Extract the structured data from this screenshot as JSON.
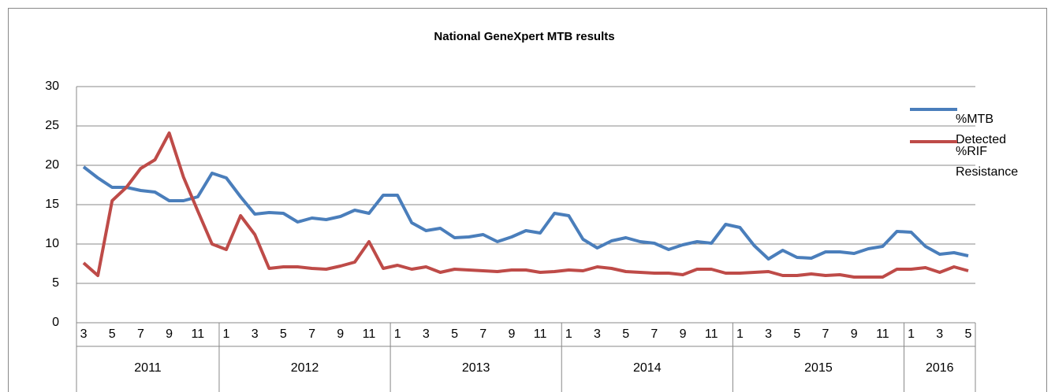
{
  "chart_data": {
    "type": "line",
    "title": "National GeneXpert MTB results",
    "groups": [
      {
        "label": "2011",
        "categories": [
          "3",
          null,
          "5",
          null,
          "7",
          null,
          "9",
          null,
          "11",
          null
        ]
      },
      {
        "label": "2012",
        "categories": [
          "1",
          null,
          "3",
          null,
          "5",
          null,
          "7",
          null,
          "9",
          null,
          "11",
          null
        ]
      },
      {
        "label": "2013",
        "categories": [
          "1",
          null,
          "3",
          null,
          "5",
          null,
          "7",
          null,
          "9",
          null,
          "11",
          null
        ]
      },
      {
        "label": "2014",
        "categories": [
          "1",
          null,
          "3",
          null,
          "5",
          null,
          "7",
          null,
          "9",
          null,
          "11",
          null
        ]
      },
      {
        "label": "2015",
        "categories": [
          "1",
          null,
          "3",
          null,
          "5",
          null,
          "7",
          null,
          "9",
          null,
          "11",
          null
        ]
      },
      {
        "label": "2016",
        "categories": [
          "1",
          null,
          "3",
          null,
          "5"
        ]
      }
    ],
    "series": [
      {
        "name": "%MTB Detected",
        "color": "#4a7ebb",
        "values": [
          19.8,
          18.4,
          17.2,
          17.2,
          16.8,
          16.6,
          15.5,
          15.5,
          16.0,
          19.0,
          18.4,
          16.0,
          13.8,
          14.0,
          13.9,
          12.8,
          13.3,
          13.1,
          13.5,
          14.3,
          13.9,
          16.2,
          16.2,
          12.7,
          11.7,
          12.0,
          10.8,
          10.9,
          11.2,
          10.3,
          10.9,
          11.7,
          11.4,
          13.9,
          13.6,
          10.6,
          9.5,
          10.4,
          10.8,
          10.3,
          10.1,
          9.3,
          9.9,
          10.3,
          10.1,
          12.5,
          12.1,
          9.8,
          8.1,
          9.2,
          8.3,
          8.2,
          9.0,
          9.0,
          8.8,
          9.4,
          9.7,
          11.6,
          11.5,
          9.7,
          8.7,
          8.9,
          8.5
        ]
      },
      {
        "name": "%RIF Resistance",
        "color": "#be4b48",
        "values": [
          7.6,
          6.0,
          15.5,
          17.2,
          19.6,
          20.7,
          24.1,
          18.5,
          14.2,
          10.0,
          9.3,
          13.6,
          11.2,
          6.9,
          7.1,
          7.1,
          6.9,
          6.8,
          7.2,
          7.7,
          10.3,
          6.9,
          7.3,
          6.8,
          7.1,
          6.4,
          6.8,
          6.7,
          6.6,
          6.5,
          6.7,
          6.7,
          6.4,
          6.5,
          6.7,
          6.6,
          7.1,
          6.9,
          6.5,
          6.4,
          6.3,
          6.3,
          6.1,
          6.8,
          6.8,
          6.3,
          6.3,
          6.4,
          6.5,
          6.0,
          6.0,
          6.2,
          6.0,
          6.1,
          5.8,
          5.8,
          5.8,
          6.8,
          6.8,
          7.0,
          6.4,
          7.1,
          6.6
        ]
      }
    ],
    "ylim": [
      0,
      30
    ],
    "yticks": [
      0,
      5,
      10,
      15,
      20,
      25,
      30
    ],
    "grid": true,
    "legend": "right"
  }
}
